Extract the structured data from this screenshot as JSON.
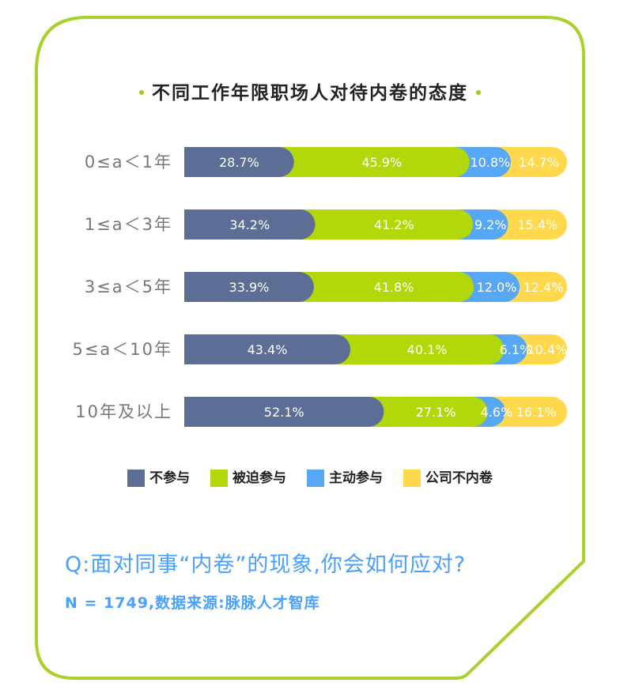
{
  "title": "不同工作年限职场人对待内卷的态度",
  "colors": {
    "frame": "#a8d12a",
    "not_participate": "#5d6e96",
    "forced": "#b3d80a",
    "active": "#56a8f7",
    "company_none": "#ffd84d"
  },
  "chart_data": {
    "type": "bar",
    "stacked": true,
    "orientation": "horizontal",
    "normalized_percent": true,
    "categories": [
      "0≤a＜1年",
      "1≤a＜3年",
      "3≤a＜5年",
      "5≤a＜10年",
      "10年及以上"
    ],
    "series": [
      {
        "name": "不参与",
        "values": [
          28.7,
          34.2,
          33.9,
          43.4,
          52.1
        ],
        "labels": [
          "28.7%",
          "34.2%",
          "33.9%",
          "43.4%",
          "52.1%"
        ]
      },
      {
        "name": "被迫参与",
        "values": [
          45.9,
          41.2,
          41.8,
          40.1,
          27.1
        ],
        "labels": [
          "45.9%",
          "41.2%",
          "41.8%",
          "40.1%",
          "27.1%"
        ]
      },
      {
        "name": "主动参与",
        "values": [
          10.8,
          9.2,
          12.0,
          6.1,
          4.6
        ],
        "labels": [
          "10.8%",
          "9.2%",
          "12.0%",
          "6.1%",
          "4.6%"
        ]
      },
      {
        "name": "公司不内卷",
        "values": [
          14.7,
          15.4,
          12.4,
          10.4,
          16.1
        ],
        "labels": [
          "14.7%",
          "15.4%",
          "12.4%",
          "10.4%",
          "16.1%"
        ]
      }
    ],
    "legend_position": "bottom"
  },
  "legend": [
    "不参与",
    "被迫参与",
    "主动参与",
    "公司不内卷"
  ],
  "question": "Q:面对同事“内卷”的现象,你会如何应对?",
  "source": "N = 1749,数据来源:脉脉人才智库"
}
